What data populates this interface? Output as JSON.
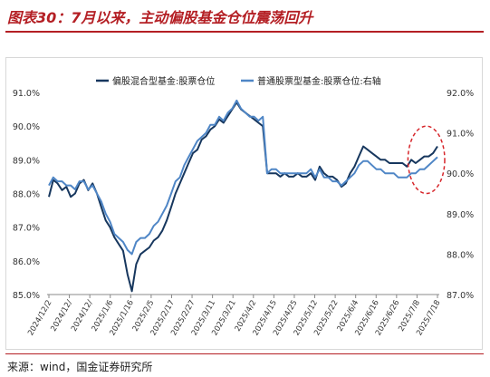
{
  "title": "图表30：7月以来，主动偏股基金仓位震荡回升",
  "source": "来源：wind，国金证券研究所",
  "colors": {
    "accent": "#b41f24",
    "series1": "#17375e",
    "series2": "#4f86c6",
    "highlight": "#d7262b"
  },
  "chart_data": {
    "type": "line",
    "legend_position": "top",
    "grid": false,
    "x_tick_labels": [
      "2024/12/2",
      "2024/12/",
      "2024/12/",
      "2025/1/6",
      "2025/1/16",
      "2025/2/5",
      "2025/2/17",
      "2025/2/27",
      "2025/3/11",
      "2025/3/21",
      "2025/4/2",
      "2025/4/15",
      "2025/4/25",
      "2025/5/12",
      "2025/5/22",
      "2025/6/4",
      "2025/6/16",
      "2025/6/26",
      "2025/7/8",
      "2025/7/18"
    ],
    "y_left": {
      "min": 85,
      "max": 91,
      "step": 1,
      "tick_labels": [
        "85.0%",
        "86.0%",
        "87.0%",
        "88.0%",
        "89.0%",
        "90.0%",
        "91.0%"
      ]
    },
    "y_right": {
      "min": 87,
      "max": 92,
      "step": 1,
      "tick_labels": [
        "87.0%",
        "88.0%",
        "89.0%",
        "90.0%",
        "91.0%",
        "92.0%"
      ]
    },
    "series": [
      {
        "name": "偏股混合型基金:股票仓位",
        "axis": "left",
        "values": [
          87.9,
          88.4,
          88.3,
          88.1,
          88.2,
          87.9,
          88.0,
          88.3,
          88.4,
          88.1,
          88.3,
          88.0,
          87.6,
          87.2,
          87.0,
          86.7,
          86.5,
          86.3,
          85.6,
          85.1,
          85.9,
          86.2,
          86.3,
          86.4,
          86.6,
          86.7,
          86.9,
          87.2,
          87.6,
          88.0,
          88.3,
          88.6,
          88.9,
          89.2,
          89.3,
          89.6,
          89.7,
          89.9,
          90.0,
          90.2,
          90.1,
          90.3,
          90.5,
          90.7,
          90.5,
          90.4,
          90.3,
          90.2,
          90.1,
          90.0,
          88.6,
          88.6,
          88.6,
          88.5,
          88.6,
          88.5,
          88.5,
          88.6,
          88.5,
          88.5,
          88.6,
          88.4,
          88.8,
          88.6,
          88.5,
          88.5,
          88.4,
          88.2,
          88.3,
          88.6,
          88.8,
          89.1,
          89.4,
          89.3,
          89.2,
          89.1,
          89.0,
          89.0,
          88.9,
          88.9,
          88.9,
          88.9,
          88.8,
          89.0,
          88.9,
          89.0,
          89.1,
          89.1,
          89.2,
          89.4
        ]
      },
      {
        "name": "普通股票型基金:股票仓位:右轴",
        "axis": "right",
        "values": [
          89.7,
          89.9,
          89.8,
          89.8,
          89.7,
          89.7,
          89.6,
          89.8,
          89.8,
          89.6,
          89.7,
          89.5,
          89.3,
          89.0,
          88.8,
          88.5,
          88.4,
          88.3,
          88.1,
          88.0,
          88.3,
          88.4,
          88.4,
          88.5,
          88.7,
          88.8,
          89.0,
          89.2,
          89.5,
          89.8,
          89.9,
          90.2,
          90.4,
          90.6,
          90.8,
          90.9,
          91.0,
          91.2,
          91.2,
          91.4,
          91.3,
          91.5,
          91.6,
          91.8,
          91.6,
          91.5,
          91.4,
          91.4,
          91.3,
          91.4,
          90.0,
          90.1,
          90.1,
          90.0,
          90.0,
          90.0,
          90.0,
          90.0,
          90.0,
          90.0,
          90.1,
          89.9,
          90.1,
          89.9,
          89.9,
          89.8,
          89.8,
          89.7,
          89.8,
          89.9,
          90.0,
          90.2,
          90.3,
          90.3,
          90.2,
          90.1,
          90.1,
          90.0,
          90.0,
          90.0,
          89.9,
          89.9,
          89.9,
          90.0,
          90.0,
          90.1,
          90.1,
          90.2,
          90.3,
          90.4
        ]
      }
    ],
    "annotation": {
      "type": "dashed-ellipse",
      "from_tick": "2025/7/8",
      "to_tick": "2025/7/18",
      "y_left_range": [
        88.0,
        90.0
      ]
    }
  }
}
